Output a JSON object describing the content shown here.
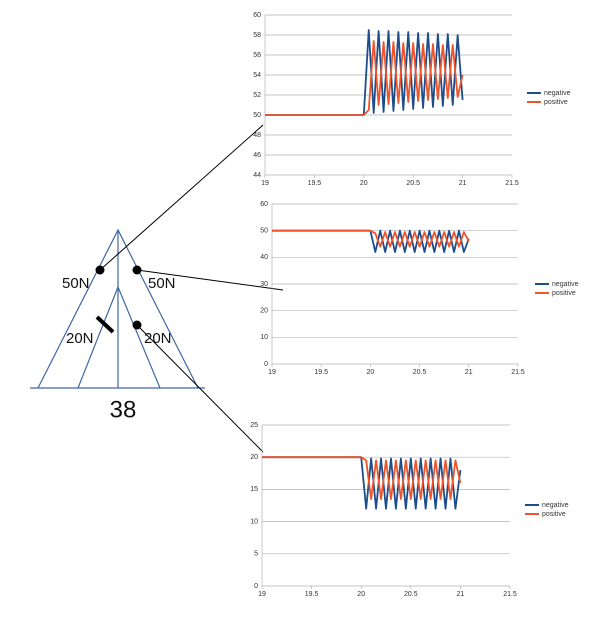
{
  "diagram": {
    "labels": [
      "50N",
      "50N",
      "20N",
      "20N"
    ],
    "value": "38"
  },
  "chart_data": [
    {
      "type": "line",
      "x": [
        19,
        20,
        20.05,
        20.1,
        20.15,
        20.2,
        20.25,
        20.3,
        20.35,
        20.4,
        20.45,
        20.5,
        20.55,
        20.6,
        20.65,
        20.7,
        20.75,
        20.8,
        20.85,
        20.9,
        20.95,
        21.0
      ],
      "series": [
        {
          "name": "negative",
          "color": "#1e4d8c",
          "values": [
            50,
            50,
            58.5,
            50.2,
            58.4,
            50.3,
            58.4,
            50.4,
            58.3,
            50.5,
            58.3,
            50.6,
            58.2,
            50.7,
            58.2,
            50.8,
            58.1,
            50.9,
            58.1,
            51.0,
            58.0,
            51.5
          ]
        },
        {
          "name": "positive",
          "color": "#f0542a",
          "values": [
            50,
            50,
            50.5,
            57.4,
            51.0,
            57.3,
            51.1,
            57.3,
            51.2,
            57.2,
            51.3,
            57.2,
            51.4,
            57.1,
            51.5,
            57.1,
            51.6,
            57.0,
            51.7,
            57.0,
            51.8,
            54.0
          ]
        }
      ],
      "xlim": [
        19,
        21.5
      ],
      "xticks": [
        19,
        19.5,
        20,
        20.5,
        21,
        21.5
      ],
      "ylim": [
        44,
        60
      ],
      "yticks": [
        44,
        46,
        48,
        50,
        52,
        54,
        56,
        58,
        60
      ],
      "grid": true,
      "legend": "right"
    },
    {
      "type": "line",
      "x": [
        19,
        20,
        20.05,
        20.1,
        20.15,
        20.2,
        20.25,
        20.3,
        20.35,
        20.4,
        20.45,
        20.5,
        20.55,
        20.6,
        20.65,
        20.7,
        20.75,
        20.8,
        20.85,
        20.9,
        20.95,
        21.0
      ],
      "series": [
        {
          "name": "negative",
          "color": "#1e4d8c",
          "values": [
            50,
            50,
            42,
            50,
            42,
            50,
            42,
            50,
            42,
            50,
            42,
            50,
            42,
            50,
            42,
            50,
            42,
            50,
            42,
            50,
            42,
            47
          ]
        },
        {
          "name": "positive",
          "color": "#f0542a",
          "values": [
            50,
            50,
            49,
            44,
            49.5,
            44,
            49.5,
            44,
            49.5,
            44,
            49.5,
            44,
            49.5,
            44,
            49.5,
            44,
            49.5,
            44,
            49.5,
            44,
            49.5,
            46
          ]
        }
      ],
      "xlim": [
        19,
        21.5
      ],
      "xticks": [
        19,
        19.5,
        20,
        20.5,
        21,
        21.5
      ],
      "ylim": [
        0,
        60
      ],
      "yticks": [
        0,
        10,
        20,
        30,
        40,
        50,
        60
      ],
      "grid": true,
      "legend": "right"
    },
    {
      "type": "line",
      "x": [
        19,
        20,
        20.05,
        20.1,
        20.15,
        20.2,
        20.25,
        20.3,
        20.35,
        20.4,
        20.45,
        20.5,
        20.55,
        20.6,
        20.65,
        20.7,
        20.75,
        20.8,
        20.85,
        20.9,
        20.95,
        21.0
      ],
      "series": [
        {
          "name": "negative",
          "color": "#1e4d8c",
          "values": [
            20,
            20,
            12,
            19.8,
            12,
            19.8,
            12,
            19.8,
            12,
            19.8,
            12,
            19.8,
            12,
            19.8,
            12,
            19.8,
            12,
            19.8,
            12,
            19.8,
            12,
            18
          ]
        },
        {
          "name": "positive",
          "color": "#f0542a",
          "values": [
            20,
            20,
            19.5,
            13.5,
            19.5,
            13.5,
            19.5,
            13.5,
            19.5,
            13.5,
            19.5,
            13.5,
            19.5,
            13.5,
            19.5,
            13.5,
            19.5,
            13.5,
            19.5,
            13.5,
            19.5,
            16
          ]
        }
      ],
      "xlim": [
        19,
        21.5
      ],
      "xticks": [
        19,
        19.5,
        20,
        20.5,
        21,
        21.5
      ],
      "ylim": [
        0,
        25
      ],
      "yticks": [
        0,
        5,
        10,
        15,
        20,
        25
      ],
      "grid": true,
      "legend": "right"
    }
  ]
}
